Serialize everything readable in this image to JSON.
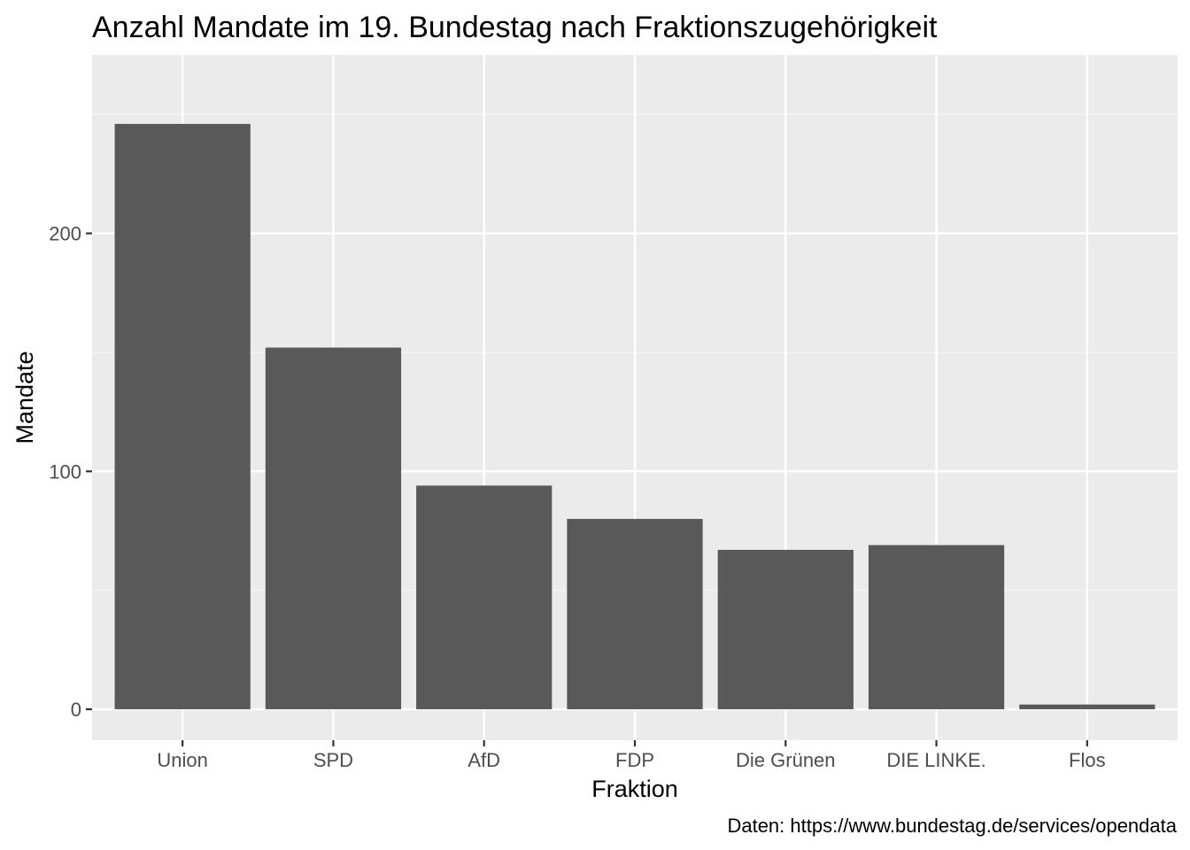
{
  "chart_data": {
    "type": "bar",
    "title": "Anzahl Mandate im 19. Bundestag nach Fraktionszugehörigkeit",
    "xlabel": "Fraktion",
    "ylabel": "Mandate",
    "caption": "Daten: https://www.bundestag.de/services/opendata",
    "categories": [
      "Union",
      "SPD",
      "AfD",
      "FDP",
      "Die Grünen",
      "DIE LINKE.",
      "Flos"
    ],
    "values": [
      246,
      152,
      94,
      80,
      67,
      69,
      2
    ],
    "ylim": [
      -13,
      275
    ],
    "yticks": [
      0,
      100,
      200
    ],
    "ytick_labels": [
      "0",
      "100",
      "200"
    ],
    "grid": true,
    "colors": {
      "panel_background": "#ebebeb",
      "grid_major": "#ffffff",
      "grid_minor": "#f5f5f5",
      "bar_fill": "#595959",
      "tick_label": "#4d4d4d",
      "tick_mark": "#333333"
    }
  }
}
